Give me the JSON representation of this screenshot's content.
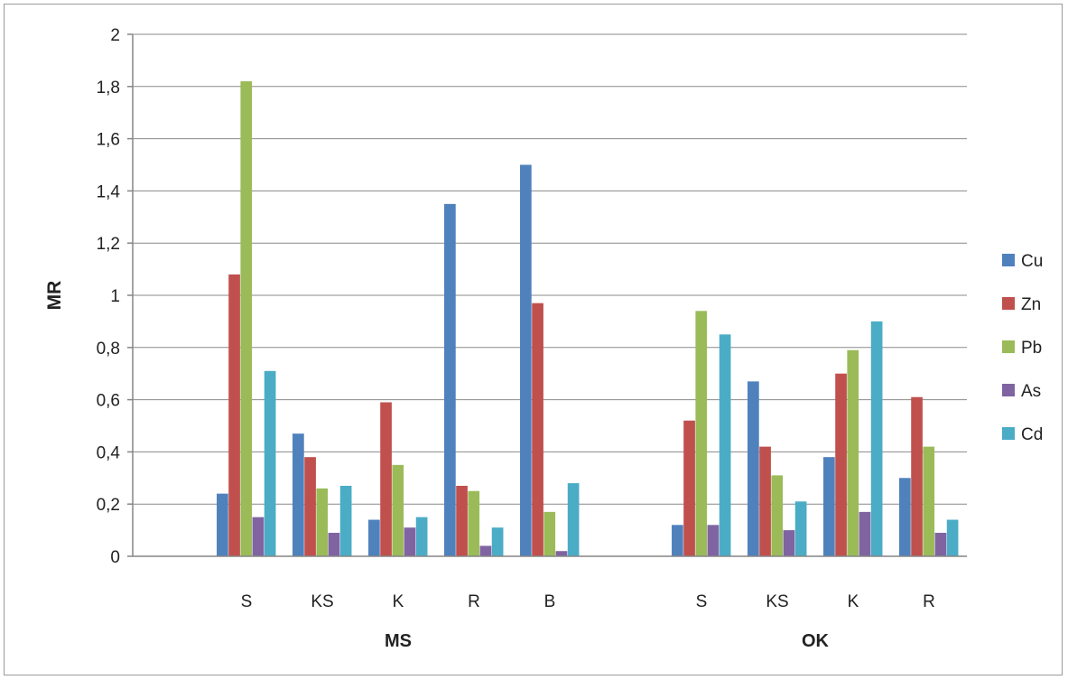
{
  "chart_data": {
    "type": "bar",
    "ylabel": "MR",
    "ylim": [
      0,
      2
    ],
    "y_ticks": [
      "0",
      "0,2",
      "0,4",
      "0,6",
      "0,8",
      "1",
      "1,2",
      "1,4",
      "1,6",
      "1,8",
      "2"
    ],
    "grid": true,
    "legend_position": "right",
    "groups": [
      {
        "name": "MS",
        "categories": [
          "S",
          "KS",
          "K",
          "R",
          "B"
        ]
      },
      {
        "name": "OK",
        "categories": [
          "S",
          "KS",
          "K",
          "R"
        ]
      }
    ],
    "categories": [
      "S",
      "KS",
      "K",
      "R",
      "B",
      "S",
      "KS",
      "K",
      "R"
    ],
    "series": [
      {
        "name": "Cu",
        "color": "#4f81bd",
        "values": [
          0.24,
          0.47,
          0.14,
          1.35,
          1.5,
          0.12,
          0.67,
          0.38,
          0.3
        ]
      },
      {
        "name": "Zn",
        "color": "#c0504d",
        "values": [
          1.08,
          0.38,
          0.59,
          0.27,
          0.97,
          0.52,
          0.42,
          0.7,
          0.61
        ]
      },
      {
        "name": "Pb",
        "color": "#9bbb59",
        "values": [
          1.82,
          0.26,
          0.35,
          0.25,
          0.17,
          0.94,
          0.31,
          0.79,
          0.42
        ]
      },
      {
        "name": "As",
        "color": "#8064a2",
        "values": [
          0.15,
          0.09,
          0.11,
          0.04,
          0.02,
          0.12,
          0.1,
          0.17,
          0.09
        ]
      },
      {
        "name": "Cd",
        "color": "#4bacc6",
        "values": [
          0.71,
          0.27,
          0.15,
          0.11,
          0.28,
          0.85,
          0.21,
          0.9,
          0.14
        ]
      }
    ]
  }
}
